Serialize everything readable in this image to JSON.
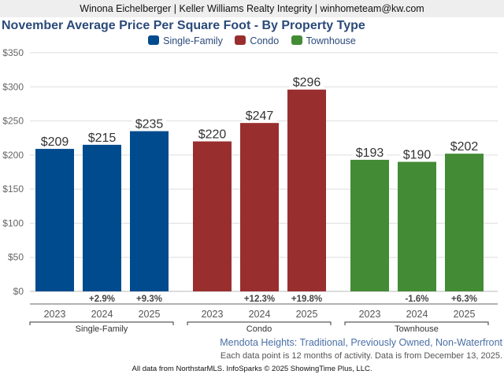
{
  "banner": "Winona Eichelberger | Keller Williams Realty Integrity | winhometeam@kw.com",
  "subtitle": "Mendota Heights: Traditional, Previously Owned, Non-Waterfront",
  "note": "Each data point is 12 months of activity. Data is from December 13, 2025.",
  "footer": "All data from NorthstarMLS. InfoSparks © 2025 ShowingTime Plus, LLC.",
  "chart_data": {
    "type": "bar",
    "title": "November Average Price Per Square Foot - By Property Type",
    "xlabel": "",
    "ylabel": "",
    "ylim": [
      0,
      350
    ],
    "yticks": [
      0,
      50,
      100,
      150,
      200,
      250,
      300,
      350
    ],
    "ytick_labels": [
      "$0",
      "$50",
      "$100",
      "$150",
      "$200",
      "$250",
      "$300",
      "$350"
    ],
    "grid": true,
    "legend_position": "top-center",
    "categories": [
      "2023",
      "2024",
      "2025"
    ],
    "series": [
      {
        "name": "Single-Family",
        "color": "#004b8d",
        "values": [
          209,
          215,
          235
        ],
        "value_labels": [
          "$209",
          "$215",
          "$235"
        ],
        "pct_change": [
          "",
          "+2.9%",
          "+9.3%"
        ]
      },
      {
        "name": "Condo",
        "color": "#992e2e",
        "values": [
          220,
          247,
          296
        ],
        "value_labels": [
          "$220",
          "$247",
          "$296"
        ],
        "pct_change": [
          "",
          "+12.3%",
          "+19.8%"
        ]
      },
      {
        "name": "Townhouse",
        "color": "#448b36",
        "values": [
          193,
          190,
          202
        ],
        "value_labels": [
          "$193",
          "$190",
          "$202"
        ],
        "pct_change": [
          "",
          "-1.6%",
          "+6.3%"
        ]
      }
    ]
  }
}
